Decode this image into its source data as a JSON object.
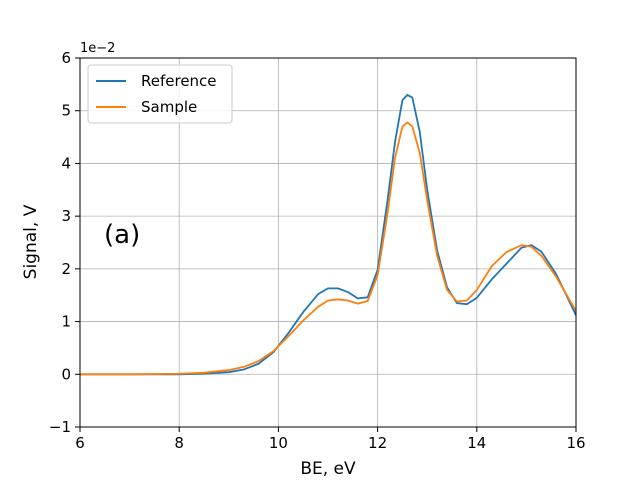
{
  "chart_data": {
    "type": "line",
    "xlabel": "BE, eV",
    "ylabel": "Signal, V",
    "y_exponent_label": "1e−2",
    "annotation": "(a)",
    "xlim": [
      6,
      16
    ],
    "ylim": [
      -1,
      6
    ],
    "x_ticks": [
      "6",
      "8",
      "10",
      "12",
      "14",
      "16"
    ],
    "y_ticks": [
      "−1",
      "0",
      "1",
      "2",
      "3",
      "4",
      "5",
      "6"
    ],
    "grid": true,
    "legend_position": "top-left",
    "series": [
      {
        "name": "Reference",
        "color": "#1f77b4",
        "x": [
          6.0,
          7.0,
          8.0,
          8.5,
          9.0,
          9.3,
          9.6,
          9.9,
          10.2,
          10.5,
          10.8,
          11.0,
          11.2,
          11.4,
          11.6,
          11.8,
          12.0,
          12.2,
          12.35,
          12.5,
          12.6,
          12.7,
          12.85,
          13.0,
          13.2,
          13.4,
          13.6,
          13.8,
          14.0,
          14.3,
          14.6,
          14.9,
          15.1,
          15.3,
          15.6,
          16.0
        ],
        "y": [
          0.0,
          0.0,
          0.0,
          0.01,
          0.04,
          0.09,
          0.2,
          0.42,
          0.78,
          1.18,
          1.52,
          1.63,
          1.63,
          1.56,
          1.44,
          1.46,
          1.98,
          3.3,
          4.4,
          5.2,
          5.3,
          5.25,
          4.6,
          3.5,
          2.35,
          1.65,
          1.35,
          1.33,
          1.45,
          1.8,
          2.1,
          2.4,
          2.45,
          2.33,
          1.9,
          1.12
        ]
      },
      {
        "name": "Sample",
        "color": "#ff7f0e",
        "x": [
          6.0,
          7.0,
          8.0,
          8.5,
          9.0,
          9.3,
          9.6,
          9.9,
          10.2,
          10.5,
          10.8,
          11.0,
          11.2,
          11.4,
          11.6,
          11.8,
          12.0,
          12.2,
          12.35,
          12.5,
          12.6,
          12.7,
          12.85,
          13.0,
          13.2,
          13.4,
          13.6,
          13.8,
          14.0,
          14.3,
          14.6,
          14.9,
          15.1,
          15.3,
          15.6,
          16.0
        ],
        "y": [
          0.0,
          0.0,
          0.01,
          0.03,
          0.08,
          0.14,
          0.25,
          0.44,
          0.72,
          1.02,
          1.28,
          1.4,
          1.42,
          1.4,
          1.34,
          1.39,
          1.88,
          3.05,
          4.1,
          4.7,
          4.78,
          4.7,
          4.2,
          3.3,
          2.25,
          1.6,
          1.38,
          1.4,
          1.6,
          2.05,
          2.32,
          2.45,
          2.42,
          2.25,
          1.85,
          1.2
        ]
      }
    ]
  }
}
